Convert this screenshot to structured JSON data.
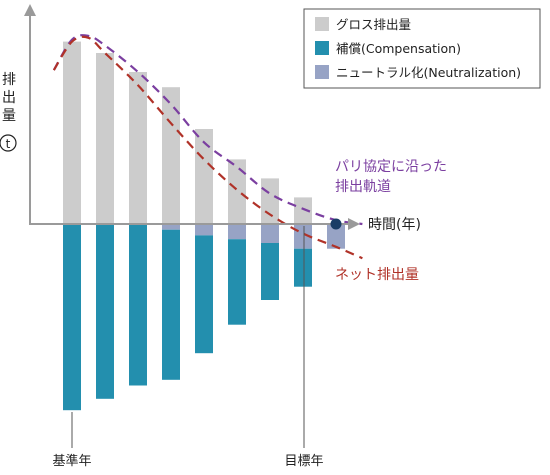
{
  "chart_data": {
    "type": "bar",
    "categories": [
      "基準年",
      "",
      "",
      "",
      "",
      "",
      "",
      "",
      "目標年"
    ],
    "ylabel": "排出量(t)",
    "xlabel": "時間(年)",
    "ylim": [
      -100,
      100
    ],
    "series": [
      {
        "name": "グロス排出量",
        "color": "#cccccc",
        "values": [
          96,
          90,
          80,
          72,
          50,
          34,
          24,
          14,
          0
        ]
      },
      {
        "name": "補償(Compensation)",
        "color": "#238fae",
        "values": [
          -98,
          -92,
          -85,
          -82,
          -68,
          -53,
          -40,
          -33,
          0
        ]
      },
      {
        "name": "ニュートラル化(Neutralization)",
        "color": "#97a3c5",
        "values": [
          0,
          0,
          0,
          -3,
          -6,
          -8,
          -10,
          -13,
          -13
        ]
      }
    ],
    "lines": [
      {
        "name": "パリ協定に沿った排出軌道",
        "color": "#7b3fa0",
        "style": "dashed",
        "x": [
          -0.55,
          0,
          0.5,
          1,
          2,
          3,
          4,
          5,
          6,
          7,
          8,
          8.8
        ],
        "values": [
          81,
          97,
          99,
          94,
          80,
          63,
          43,
          30,
          16,
          8,
          2,
          0
        ]
      },
      {
        "name": "ネット排出量",
        "color": "#b03228",
        "style": "dashed",
        "x": [
          -0.55,
          0,
          0.5,
          1,
          2,
          3,
          4,
          5,
          6,
          7,
          8,
          8.8
        ],
        "values": [
          81,
          96,
          98,
          90,
          73,
          53,
          34,
          18,
          5,
          -5,
          -12,
          -18
        ]
      }
    ],
    "markers": [
      {
        "name": "net-zero-point",
        "x": 8,
        "y": 0,
        "color": "#1a3d66"
      }
    ],
    "legend": "top-right",
    "grid": false
  }
}
